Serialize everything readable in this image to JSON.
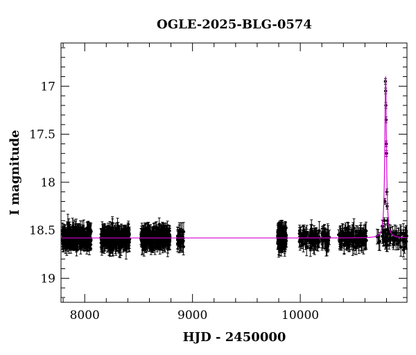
{
  "chart_data": {
    "type": "scatter",
    "title": "OGLE-2025-BLG-0574",
    "xlabel": "HJD - 2450000",
    "ylabel": "I magnitude",
    "xlim": [
      7780,
      10990
    ],
    "ylim": [
      19.25,
      16.55
    ],
    "y_inverted": true,
    "grid": false,
    "x_ticks": [
      8000,
      9000,
      10000
    ],
    "x_tick_labels": [
      "8000",
      "9000",
      "10000"
    ],
    "y_ticks": [
      17,
      17.5,
      18,
      18.5,
      19
    ],
    "y_tick_labels": [
      "17",
      "17.5",
      "18",
      "18.5",
      "19"
    ],
    "baseline_mag": 18.58,
    "series": [
      {
        "kind": "points",
        "color": "#000000",
        "seasons": [
          {
            "start": 7790,
            "end": 8060,
            "n": 260
          },
          {
            "start": 8150,
            "end": 8420,
            "n": 260
          },
          {
            "start": 8520,
            "end": 8790,
            "n": 260
          },
          {
            "start": 8860,
            "end": 8920,
            "n": 30
          },
          {
            "start": 9790,
            "end": 9870,
            "n": 160
          },
          {
            "start": 9990,
            "end": 10270,
            "n": 110
          },
          {
            "start": 10350,
            "end": 10620,
            "n": 120
          },
          {
            "start": 10710,
            "end": 10990,
            "n": 70
          }
        ],
        "peak_points": [
          {
            "x": 10790,
            "y": 16.95
          },
          {
            "x": 10792,
            "y": 17.05
          },
          {
            "x": 10794,
            "y": 17.2
          },
          {
            "x": 10796,
            "y": 17.35
          },
          {
            "x": 10798,
            "y": 17.6
          },
          {
            "x": 10800,
            "y": 17.7
          },
          {
            "x": 10803,
            "y": 18.1
          },
          {
            "x": 10806,
            "y": 18.25
          },
          {
            "x": 10810,
            "y": 18.4
          },
          {
            "x": 10785,
            "y": 18.2
          },
          {
            "x": 10780,
            "y": 18.4
          }
        ]
      },
      {
        "kind": "model",
        "color": "#d400d4",
        "t0": 10792,
        "amplitude": 1.68,
        "width": 9
      }
    ]
  }
}
